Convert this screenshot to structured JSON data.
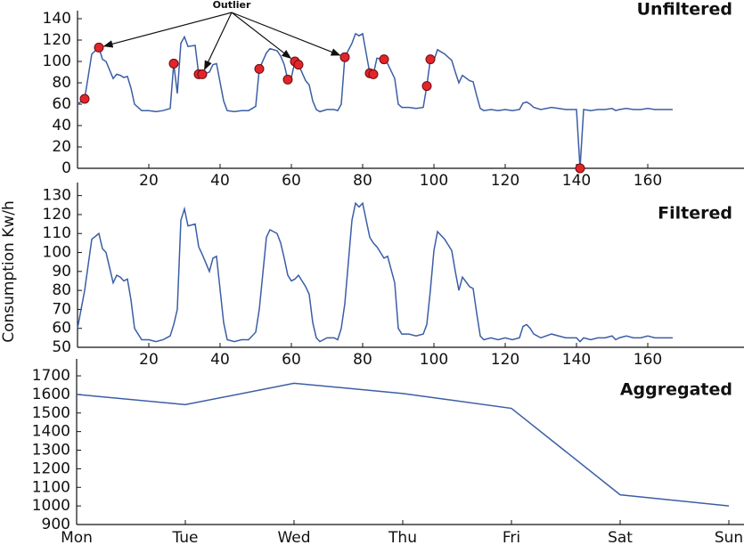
{
  "y_axis_label": "Consumption Kw/h",
  "chart_data": [
    {
      "type": "line",
      "title": "Unfiltered",
      "color": "#3b5ea6",
      "x": [
        0,
        2,
        4,
        6,
        7,
        8,
        10,
        11,
        12,
        13,
        14,
        15,
        16,
        18,
        20,
        22,
        24,
        26,
        27,
        28,
        29,
        30,
        31,
        33,
        34,
        35,
        37,
        38,
        39,
        41,
        42,
        44,
        46,
        48,
        50,
        51,
        53,
        54,
        56,
        57,
        58,
        59,
        60,
        61,
        62,
        64,
        65,
        66,
        67,
        68,
        70,
        72,
        73,
        74,
        75,
        77,
        78,
        79,
        80,
        82,
        83,
        84,
        86,
        87,
        89,
        90,
        91,
        93,
        95,
        97,
        98,
        99,
        100,
        101,
        103,
        105,
        106,
        107,
        108,
        110,
        111,
        112,
        113,
        114,
        116,
        118,
        120,
        122,
        124,
        125,
        126,
        127,
        128,
        130,
        133,
        135,
        137,
        140,
        141,
        142,
        144,
        146,
        148,
        150,
        151,
        152,
        154,
        156,
        158,
        160,
        162,
        164,
        166,
        167
      ],
      "values": [
        60,
        65,
        107,
        113,
        102,
        100,
        84,
        88,
        87,
        85,
        86,
        75,
        60,
        54,
        54,
        53,
        54,
        56,
        98,
        70,
        117,
        123,
        114,
        115,
        88,
        88,
        90,
        97,
        98,
        63,
        54,
        53,
        54,
        54,
        58,
        93,
        108,
        112,
        110,
        105,
        97,
        83,
        85,
        100,
        97,
        82,
        78,
        63,
        55,
        53,
        55,
        55,
        54,
        60,
        104,
        117,
        126,
        124,
        126,
        89,
        88,
        103,
        102,
        98,
        84,
        60,
        57,
        57,
        56,
        57,
        77,
        102,
        101,
        111,
        107,
        101,
        90,
        80,
        87,
        82,
        81,
        68,
        56,
        54,
        55,
        54,
        55,
        54,
        55,
        61,
        62,
        60,
        57,
        55,
        57,
        56,
        55,
        55,
        0,
        55,
        54,
        55,
        55,
        56,
        54,
        55,
        56,
        55,
        55,
        56,
        55,
        55,
        55,
        55
      ],
      "outliers": {
        "color": "#e3242b",
        "x": [
          2,
          6,
          27,
          34,
          35,
          51,
          59,
          61,
          62,
          75,
          82,
          83,
          86,
          98,
          99,
          141
        ],
        "values": [
          65,
          113,
          98,
          88,
          88,
          93,
          83,
          100,
          97,
          104,
          89,
          88,
          102,
          77,
          102,
          0
        ]
      },
      "annotation": "Outlier",
      "xlim": [
        0,
        187
      ],
      "xticks": [
        20,
        40,
        60,
        80,
        100,
        120,
        140,
        160
      ],
      "ylim": [
        0,
        140
      ],
      "yticks": [
        0,
        20,
        40,
        60,
        80,
        100,
        120,
        140
      ]
    },
    {
      "type": "line",
      "title": "Filtered",
      "color": "#3b5ea6",
      "x": [
        0,
        2,
        4,
        6,
        7,
        8,
        10,
        11,
        12,
        13,
        14,
        15,
        16,
        18,
        20,
        22,
        24,
        26,
        27,
        28,
        29,
        30,
        31,
        33,
        34,
        35,
        37,
        38,
        39,
        41,
        42,
        44,
        46,
        48,
        50,
        51,
        53,
        54,
        56,
        57,
        58,
        59,
        60,
        61,
        62,
        64,
        65,
        66,
        67,
        68,
        70,
        72,
        73,
        74,
        75,
        77,
        78,
        79,
        80,
        82,
        83,
        84,
        86,
        87,
        89,
        90,
        91,
        93,
        95,
        97,
        98,
        99,
        100,
        101,
        103,
        105,
        106,
        107,
        108,
        110,
        111,
        112,
        113,
        114,
        116,
        118,
        120,
        122,
        124,
        125,
        126,
        127,
        128,
        130,
        133,
        135,
        137,
        140,
        141,
        142,
        144,
        146,
        148,
        150,
        151,
        152,
        154,
        156,
        158,
        160,
        162,
        164,
        166,
        167
      ],
      "values": [
        60,
        80,
        107,
        110,
        102,
        100,
        84,
        88,
        87,
        85,
        86,
        75,
        60,
        54,
        54,
        53,
        54,
        56,
        62,
        70,
        117,
        123,
        114,
        115,
        103,
        99,
        90,
        97,
        98,
        63,
        54,
        53,
        54,
        54,
        58,
        70,
        108,
        112,
        110,
        105,
        97,
        88,
        85,
        86,
        88,
        82,
        78,
        63,
        55,
        53,
        55,
        55,
        54,
        60,
        73,
        117,
        126,
        124,
        126,
        108,
        105,
        103,
        97,
        98,
        84,
        60,
        57,
        57,
        56,
        57,
        62,
        80,
        101,
        111,
        107,
        101,
        90,
        80,
        87,
        82,
        81,
        68,
        56,
        54,
        55,
        54,
        55,
        54,
        55,
        61,
        62,
        60,
        57,
        55,
        57,
        56,
        55,
        55,
        53,
        55,
        54,
        55,
        55,
        56,
        54,
        55,
        56,
        55,
        55,
        56,
        55,
        55,
        55,
        55
      ],
      "xlim": [
        0,
        187
      ],
      "xticks": [
        20,
        40,
        60,
        80,
        100,
        120,
        140,
        160
      ],
      "ylim": [
        50,
        135
      ],
      "yticks": [
        50,
        60,
        70,
        80,
        90,
        100,
        110,
        120,
        130
      ]
    },
    {
      "type": "line",
      "title": "Aggregated",
      "color": "#3b5ea6",
      "categories": [
        "Mon",
        "Tue",
        "Wed",
        "Thu",
        "Fri",
        "Sat",
        "Sun"
      ],
      "values": [
        1600,
        1545,
        1660,
        1605,
        1525,
        1060,
        1000
      ],
      "ylim": [
        900,
        1750
      ],
      "yticks": [
        900,
        1000,
        1100,
        1200,
        1300,
        1400,
        1500,
        1600,
        1700
      ]
    }
  ]
}
